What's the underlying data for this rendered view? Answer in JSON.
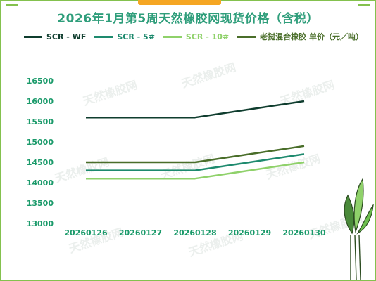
{
  "title": "2026年1月第5周天然橡胶网现货价格（含税）",
  "colors": {
    "frame": "#84c14e",
    "accent": "#f5a623",
    "title": "#2f9e7b",
    "axis_text": "#1a9a6a"
  },
  "chart_data": {
    "type": "line",
    "title": "2026年1月第5周天然橡胶网现货价格（含税）",
    "xlabel": "",
    "ylabel": "",
    "categories": [
      "20260126",
      "20260127",
      "20260128",
      "20260129",
      "20260130"
    ],
    "yticks": [
      "16500",
      "16000",
      "15500",
      "15000",
      "14500",
      "14000",
      "13500",
      "13000"
    ],
    "ylim": [
      13000,
      16500
    ],
    "grid": false,
    "legend_position": "top",
    "series": [
      {
        "name": "SCR - WF",
        "color": "#0f3d2e",
        "values": [
          15600,
          15600,
          15600,
          15800,
          16000
        ]
      },
      {
        "name": "SCR - 5#",
        "color": "#1e8a6e",
        "values": [
          14300,
          14300,
          14300,
          14500,
          14700
        ]
      },
      {
        "name": "SCR - 10#",
        "color": "#8fd16a",
        "values": [
          14100,
          14100,
          14100,
          14300,
          14500
        ]
      },
      {
        "name": "老挝混合橡胶 单价（元／吨）",
        "color": "#4a6e2a",
        "values": [
          14500,
          14500,
          14500,
          14700,
          14900
        ]
      }
    ]
  },
  "watermark": "天然橡胶网"
}
